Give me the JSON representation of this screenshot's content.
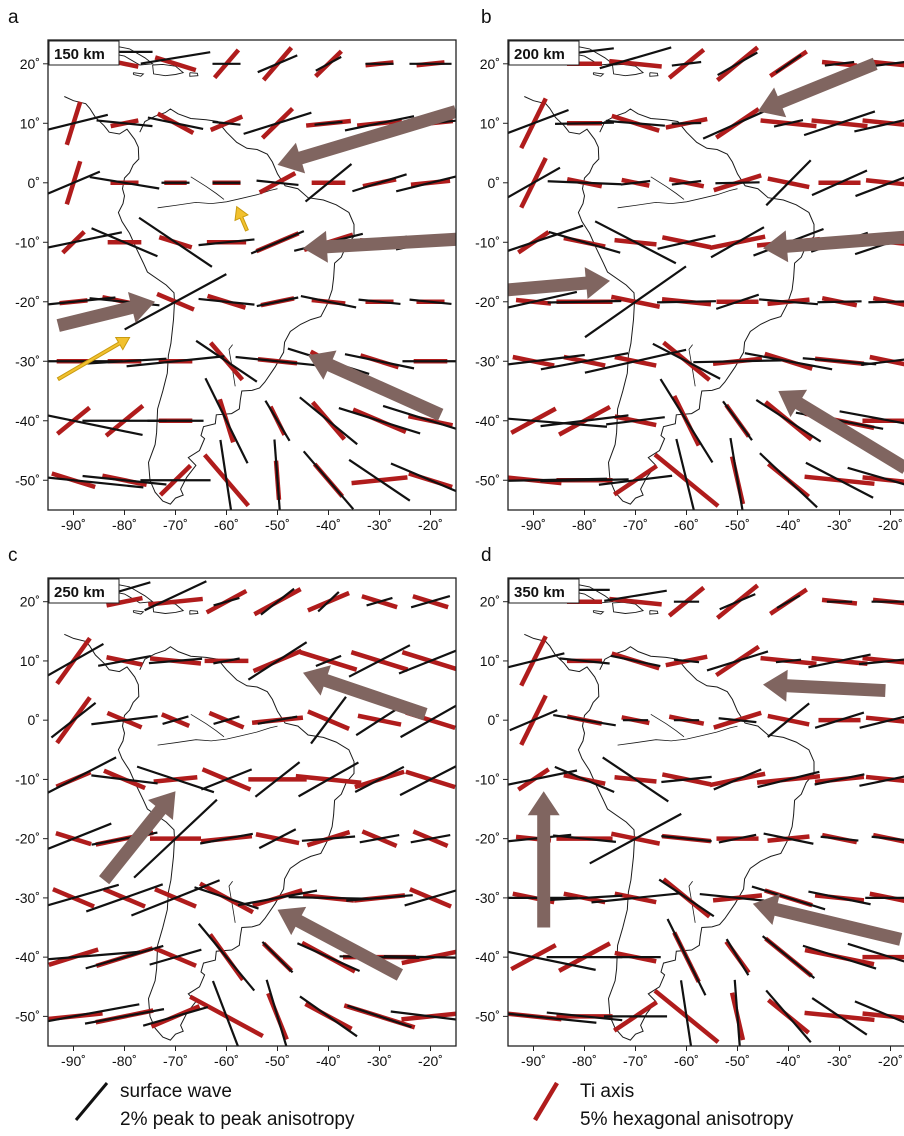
{
  "panels": [
    {
      "letter": "a",
      "depth_label": "150 km",
      "x_ticks": [
        "-90˚",
        "-80˚",
        "-70˚",
        "-60˚",
        "-50˚",
        "-40˚",
        "-30˚",
        "-20˚"
      ],
      "y_ticks": [
        "20˚",
        "10˚",
        "0˚",
        "-10˚",
        "-20˚",
        "-30˚",
        "-40˚",
        "-50˚"
      ],
      "arrows": [
        {
          "color": "brown",
          "from": [
            -15,
            12
          ],
          "to": [
            -50,
            3
          ]
        },
        {
          "color": "brown",
          "from": [
            -15,
            -9.5
          ],
          "to": [
            -45,
            -11
          ]
        },
        {
          "color": "brown",
          "from": [
            -93,
            -24
          ],
          "to": [
            -74,
            -20
          ]
        },
        {
          "color": "brown",
          "from": [
            -18,
            -39
          ],
          "to": [
            -44,
            -29
          ]
        },
        {
          "color": "yellow",
          "from": [
            -93,
            -33
          ],
          "to": [
            -79,
            -26
          ]
        },
        {
          "color": "yellow",
          "from": [
            -56,
            -8
          ],
          "to": [
            -58,
            -4
          ]
        }
      ]
    },
    {
      "letter": "b",
      "depth_label": "200 km",
      "x_ticks": [
        "-90˚",
        "-80˚",
        "-70˚",
        "-60˚",
        "-50˚",
        "-40˚",
        "-30˚",
        "-20˚"
      ],
      "y_ticks": [
        "20˚",
        "10˚",
        "0˚",
        "-10˚",
        "-20˚",
        "-30˚",
        "-40˚",
        "-50˚"
      ],
      "arrows": [
        {
          "color": "brown",
          "from": [
            -23,
            20
          ],
          "to": [
            -46,
            12
          ]
        },
        {
          "color": "brown",
          "from": [
            -15,
            -9
          ],
          "to": [
            -45,
            -11
          ]
        },
        {
          "color": "brown",
          "from": [
            -95,
            -18
          ],
          "to": [
            -75,
            -16.5
          ]
        },
        {
          "color": "brown",
          "from": [
            -17,
            -48
          ],
          "to": [
            -42,
            -35
          ]
        }
      ]
    },
    {
      "letter": "c",
      "depth_label": "250 km",
      "x_ticks": [
        "-90˚",
        "-80˚",
        "-70˚",
        "-60˚",
        "-50˚",
        "-40˚",
        "-30˚",
        "-20˚"
      ],
      "y_ticks": [
        "20˚",
        "10˚",
        "0˚",
        "-10˚",
        "-20˚",
        "-30˚",
        "-40˚",
        "-50˚"
      ],
      "arrows": [
        {
          "color": "brown",
          "from": [
            -21,
            1
          ],
          "to": [
            -45,
            8
          ]
        },
        {
          "color": "brown",
          "from": [
            -84,
            -27
          ],
          "to": [
            -70,
            -12
          ]
        },
        {
          "color": "brown",
          "from": [
            -26,
            -43
          ],
          "to": [
            -50,
            -32
          ]
        }
      ]
    },
    {
      "letter": "d",
      "depth_label": "350 km",
      "x_ticks": [
        "-90˚",
        "-80˚",
        "-70˚",
        "-60˚",
        "-50˚",
        "-40˚",
        "-30˚",
        "-20˚"
      ],
      "y_ticks": [
        "20˚",
        "10˚",
        "0˚",
        "-10˚",
        "-20˚",
        "-30˚",
        "-40˚",
        "-50˚"
      ],
      "arrows": [
        {
          "color": "brown",
          "from": [
            -21,
            5
          ],
          "to": [
            -45,
            6
          ]
        },
        {
          "color": "brown",
          "from": [
            -88,
            -35
          ],
          "to": [
            -88,
            -12
          ]
        },
        {
          "color": "brown",
          "from": [
            -18,
            -37
          ],
          "to": [
            -47,
            -31
          ]
        }
      ]
    }
  ],
  "legend": {
    "surface_wave_line1": "surface wave",
    "surface_wave_line2": "2% peak to peak anisotropy",
    "ti_axis_line1": "Ti axis",
    "ti_axis_line2": "5% hexagonal anisotropy"
  },
  "colors": {
    "surface_wave": "#111111",
    "ti_axis": "#b01c1c",
    "flow_arrow": "#806560",
    "highlight_arrow": "#f2c12e",
    "highlight_arrow_edge": "#c99b10",
    "coastline": "#1a1a1a",
    "frame": "#222222"
  },
  "map": {
    "lon_range": [
      -95,
      -15
    ],
    "lat_range": [
      -55,
      24
    ],
    "grid_lons": [
      -90,
      -80,
      -70,
      -60,
      -50,
      -40,
      -30,
      -20
    ],
    "grid_lats": [
      20,
      10,
      0,
      -10,
      -20,
      -30,
      -40,
      -50
    ]
  }
}
